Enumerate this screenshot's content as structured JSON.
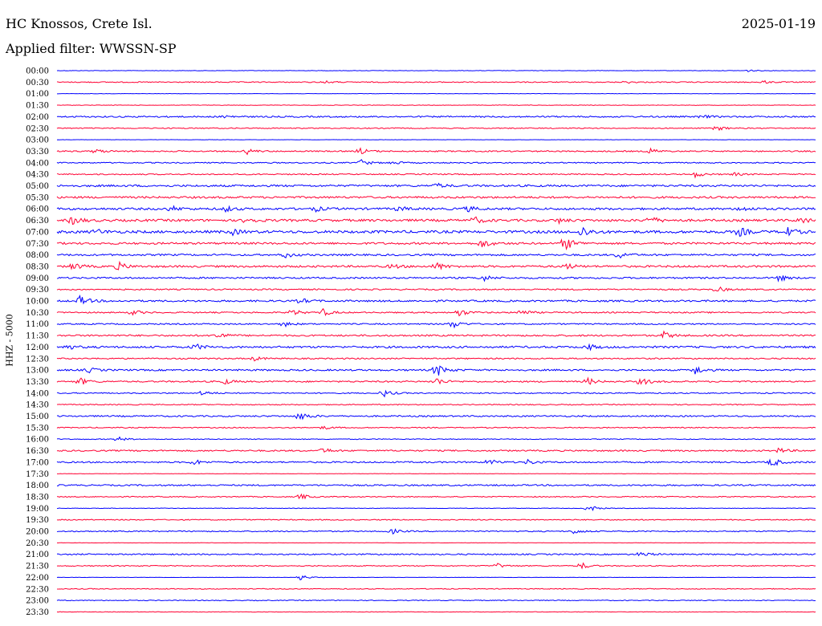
{
  "header": {
    "station": "HC Knossos, Crete Isl.",
    "date": "2025-01-19",
    "filter_label": "Applied filter: WWSSN-SP"
  },
  "channel_label": "HHZ - 5000",
  "colors": {
    "even_row": "#0000ff",
    "odd_row": "#ff0033",
    "background": "#ffffff"
  },
  "chart_data": {
    "type": "line",
    "subtype": "helicorder",
    "title": "HC Knossos, Crete Isl.",
    "ylabel": "HHZ - 5000",
    "grid": false,
    "row_labels": [
      "00:00",
      "00:30",
      "01:00",
      "01:30",
      "02:00",
      "02:30",
      "03:00",
      "03:30",
      "04:00",
      "04:30",
      "05:00",
      "05:30",
      "06:00",
      "06:30",
      "07:00",
      "07:30",
      "08:00",
      "08:30",
      "09:00",
      "09:30",
      "10:00",
      "10:30",
      "11:00",
      "11:30",
      "12:00",
      "12:30",
      "13:00",
      "13:30",
      "14:00",
      "14:30",
      "15:00",
      "15:30",
      "16:00",
      "16:30",
      "17:00",
      "17:30",
      "18:00",
      "18:30",
      "19:00",
      "19:30",
      "20:00",
      "20:30",
      "21:00",
      "21:30",
      "22:00",
      "22:30",
      "23:00",
      "23:30"
    ],
    "noise_level": [
      0.3,
      0.6,
      0.2,
      0.3,
      0.9,
      0.6,
      0.2,
      0.8,
      0.7,
      0.7,
      1.2,
      1.2,
      1.3,
      1.4,
      1.6,
      1.2,
      1.1,
      1.2,
      1.0,
      0.8,
      1.1,
      0.8,
      0.8,
      1.0,
      1.2,
      0.8,
      1.0,
      0.9,
      0.7,
      0.6,
      0.9,
      0.6,
      0.5,
      0.9,
      0.9,
      0.2,
      0.9,
      0.6,
      0.3,
      0.6,
      0.7,
      0.2,
      0.8,
      0.6,
      0.2,
      0.5,
      0.5,
      0.3
    ],
    "events": [
      [
        [
          0.91,
          1.5
        ]
      ],
      [
        [
          0.35,
          2.0
        ],
        [
          0.75,
          1.5
        ],
        [
          0.93,
          2.0
        ]
      ],
      [],
      [],
      [
        [
          0.22,
          2.0
        ],
        [
          0.85,
          2.0
        ]
      ],
      [
        [
          0.87,
          3.0
        ]
      ],
      [],
      [
        [
          0.05,
          3.0
        ],
        [
          0.25,
          3.5
        ],
        [
          0.4,
          3.5
        ],
        [
          0.78,
          4.0
        ]
      ],
      [
        [
          0.4,
          4.0
        ],
        [
          0.44,
          2.5
        ]
      ],
      [
        [
          0.84,
          4.0
        ],
        [
          0.89,
          2.5
        ]
      ],
      [
        [
          0.5,
          3.0
        ]
      ],
      [],
      [
        [
          0.15,
          3.5
        ],
        [
          0.22,
          4.0
        ],
        [
          0.34,
          3.0
        ],
        [
          0.45,
          3.0
        ],
        [
          0.54,
          3.5
        ],
        [
          0.9,
          3.0
        ]
      ],
      [
        [
          0.02,
          5.5
        ],
        [
          0.25,
          4.0
        ],
        [
          0.55,
          4.0
        ],
        [
          0.66,
          3.0
        ],
        [
          0.78,
          5.5
        ],
        [
          0.98,
          4.0
        ]
      ],
      [
        [
          0.05,
          3.5
        ],
        [
          0.23,
          3.5
        ],
        [
          0.69,
          8.0
        ],
        [
          0.9,
          5.0
        ],
        [
          0.96,
          6.5
        ]
      ],
      [
        [
          0.56,
          5.5
        ],
        [
          0.67,
          8.5
        ]
      ],
      [
        [
          0.3,
          3.5
        ],
        [
          0.74,
          4.5
        ]
      ],
      [
        [
          0.02,
          5.0
        ],
        [
          0.08,
          5.5
        ],
        [
          0.44,
          3.0
        ],
        [
          0.5,
          4.5
        ],
        [
          0.67,
          4.0
        ]
      ],
      [
        [
          0.56,
          4.5
        ],
        [
          0.95,
          4.5
        ]
      ],
      [
        [
          0.87,
          3.5
        ]
      ],
      [
        [
          0.03,
          6.0
        ],
        [
          0.32,
          3.5
        ]
      ],
      [
        [
          0.1,
          3.0
        ],
        [
          0.31,
          4.0
        ],
        [
          0.35,
          4.5
        ],
        [
          0.53,
          4.5
        ],
        [
          0.61,
          4.5
        ]
      ],
      [
        [
          0.3,
          3.0
        ],
        [
          0.52,
          6.0
        ]
      ],
      [
        [
          0.21,
          5.0
        ],
        [
          0.8,
          4.5
        ]
      ],
      [
        [
          0.01,
          4.0
        ],
        [
          0.18,
          4.5
        ],
        [
          0.7,
          3.5
        ]
      ],
      [
        [
          0.26,
          2.5
        ]
      ],
      [
        [
          0.04,
          3.5
        ],
        [
          0.5,
          8.5
        ],
        [
          0.84,
          6.0
        ]
      ],
      [
        [
          0.03,
          4.5
        ],
        [
          0.22,
          3.5
        ],
        [
          0.5,
          4.5
        ],
        [
          0.7,
          4.0
        ],
        [
          0.77,
          5.0
        ]
      ],
      [
        [
          0.19,
          3.5
        ],
        [
          0.43,
          4.5
        ]
      ],
      [],
      [
        [
          0.32,
          5.5
        ]
      ],
      [
        [
          0.35,
          2.5
        ]
      ],
      [
        [
          0.08,
          3.0
        ]
      ],
      [
        [
          0.35,
          3.5
        ],
        [
          0.95,
          3.5
        ]
      ],
      [
        [
          0.18,
          3.5
        ],
        [
          0.57,
          3.5
        ],
        [
          0.62,
          3.0
        ],
        [
          0.94,
          7.0
        ]
      ],
      [],
      [],
      [
        [
          0.32,
          4.0
        ]
      ],
      [
        [
          0.7,
          5.0
        ]
      ],
      [],
      [
        [
          0.44,
          3.5
        ],
        [
          0.68,
          3.5
        ]
      ],
      [],
      [
        [
          0.77,
          3.5
        ]
      ],
      [
        [
          0.58,
          3.0
        ],
        [
          0.69,
          4.5
        ]
      ],
      [
        [
          0.32,
          4.0
        ]
      ],
      [],
      [],
      []
    ]
  }
}
